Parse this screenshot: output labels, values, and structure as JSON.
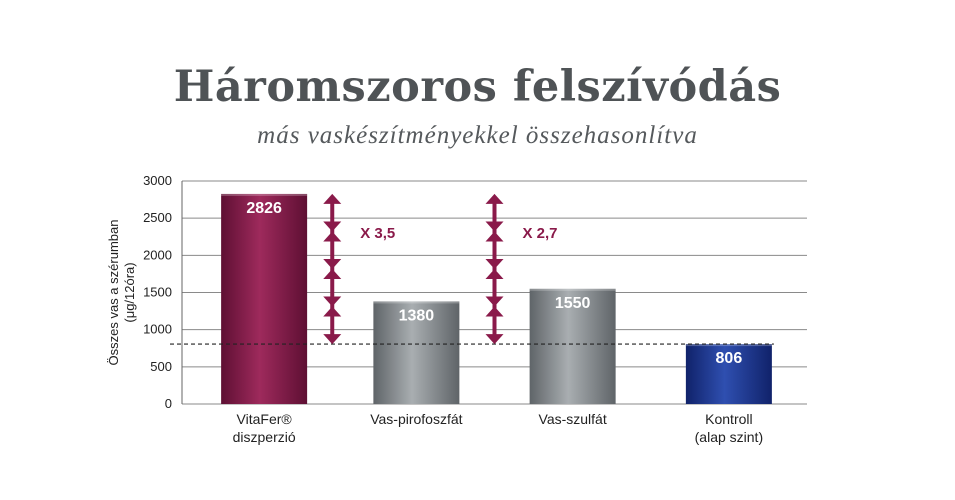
{
  "header": {
    "title": "Háromszoros felszívódás",
    "subtitle": "más vaskészítményekkel összehasonlítva"
  },
  "chart_data": {
    "type": "bar",
    "title": "Háromszoros felszívódás",
    "subtitle": "más vaskészítményekkel összehasonlítva",
    "ylabel_lines": [
      "Összes vas a szérumban",
      "(μg/12óra)"
    ],
    "ylim": [
      0,
      3000
    ],
    "yticks": [
      0,
      500,
      1000,
      1500,
      2000,
      2500,
      3000
    ],
    "grid": true,
    "categories": [
      [
        "VitaFer®",
        "diszperzió"
      ],
      [
        "Vas-pirofoszfát"
      ],
      [
        "Vas-szulfát"
      ],
      [
        "Kontroll",
        "(alap szint)"
      ]
    ],
    "values": [
      2826,
      1380,
      1550,
      806
    ],
    "value_labels": [
      "2826",
      "1380",
      "1550",
      "806"
    ],
    "bar_colors": [
      "#8b1d4e",
      "#8c9296",
      "#8c9296",
      "#1e3a8a"
    ],
    "baseline": 806,
    "comparisons": [
      {
        "from_category": 1,
        "label": "X 3,5"
      },
      {
        "from_category": 2,
        "label": "X 2,7"
      }
    ],
    "accent_color": "#8a1a4a"
  }
}
